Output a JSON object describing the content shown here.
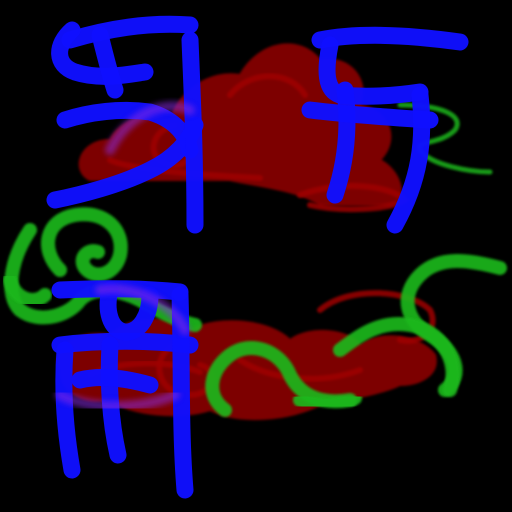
{
  "canvas": {
    "background": "#000000"
  },
  "palette": {
    "glyph_blue": "#1010ff",
    "glyph_violet": "#8a2be2",
    "cloud_red": "#8b0000",
    "cloud_dark": "#4a0000",
    "swirl_green": "#1db81d",
    "swirl_yellow": "#a0a000"
  },
  "elements": {
    "glyph_top_left": "abstract-glyph",
    "glyph_top_right": "abstract-glyph",
    "glyph_bottom_left": "abstract-glyph",
    "cloud_top": "cloud-swirl",
    "cloud_bottom": "cloud-swirl",
    "swirl_left": "green-swirl",
    "swirl_right": "green-swirl"
  }
}
